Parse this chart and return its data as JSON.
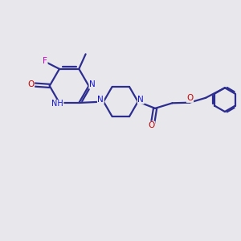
{
  "bg_color": "#e8e8ec",
  "bond_color": "#2d2d8f",
  "atom_N_color": "#1414d0",
  "atom_O_color": "#cc0000",
  "atom_F_color": "#cc00cc",
  "bond_width": 1.6,
  "figsize": [
    3.0,
    3.0
  ],
  "dpi": 100,
  "xlim": [
    0,
    10
  ],
  "ylim": [
    0,
    10
  ]
}
